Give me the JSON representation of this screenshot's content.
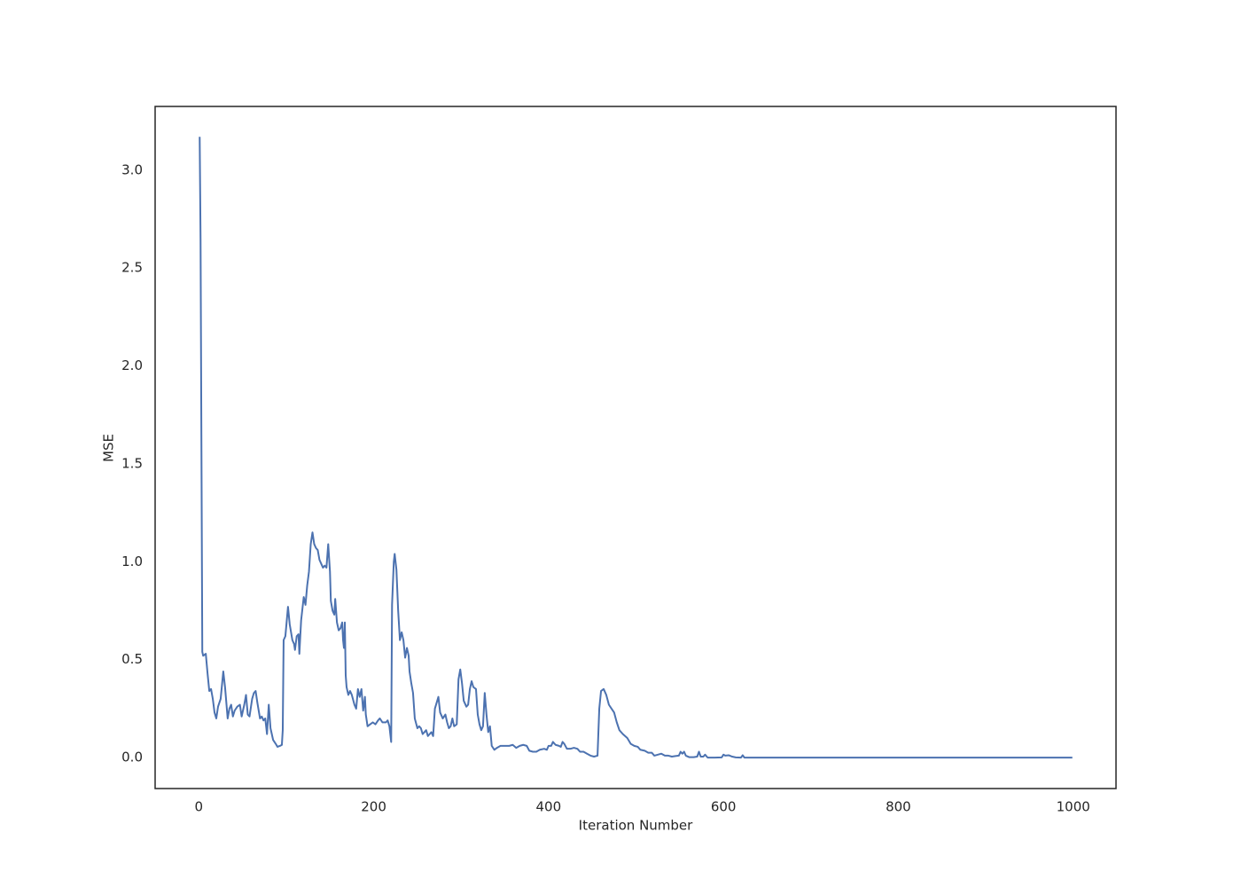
{
  "chart_data": {
    "type": "line",
    "x_label": "Iteration Number",
    "y_label": "MSE",
    "x": [
      1,
      2,
      4,
      5,
      8,
      10,
      12,
      14,
      16,
      18,
      20,
      22,
      25,
      28,
      30,
      33,
      35,
      37,
      39,
      41,
      44,
      47,
      49,
      52,
      54,
      56,
      58,
      61,
      63,
      65,
      67,
      70,
      72,
      74,
      76,
      78,
      80,
      82,
      85,
      88,
      90,
      93,
      95,
      96,
      97,
      99,
      102,
      104,
      107,
      109,
      110,
      112,
      114,
      115,
      117,
      120,
      122,
      124,
      126,
      128,
      130,
      132,
      134,
      136,
      138,
      140,
      142,
      144,
      146,
      148,
      150,
      151,
      153,
      155,
      156,
      158,
      160,
      162,
      164,
      165,
      166,
      167,
      168,
      169,
      171,
      173,
      175,
      178,
      180,
      182,
      184,
      186,
      188,
      190,
      191,
      193,
      196,
      199,
      202,
      205,
      207,
      210,
      214,
      216,
      218,
      219,
      220,
      221,
      223,
      224,
      226,
      228,
      230,
      232,
      234,
      236,
      238,
      240,
      241,
      243,
      245,
      247,
      250,
      252,
      254,
      256,
      258,
      260,
      262,
      264,
      266,
      268,
      270,
      272,
      274,
      276,
      279,
      282,
      284,
      286,
      288,
      290,
      292,
      295,
      297,
      299,
      301,
      303,
      306,
      308,
      310,
      312,
      314,
      317,
      319,
      321,
      323,
      325,
      327,
      329,
      331,
      333,
      335,
      338,
      341,
      345,
      350,
      355,
      359,
      363,
      367,
      371,
      375,
      378,
      382,
      386,
      390,
      395,
      398,
      400,
      403,
      405,
      408,
      412,
      414,
      416,
      418,
      421,
      425,
      429,
      433,
      436,
      440,
      444,
      448,
      452,
      456,
      458,
      460,
      463,
      466,
      469,
      472,
      475,
      478,
      481,
      485,
      490,
      494,
      498,
      502,
      505,
      510,
      514,
      518,
      521,
      525,
      529,
      533,
      537,
      541,
      545,
      549,
      551,
      553,
      555,
      557,
      561,
      566,
      570,
      572,
      574,
      577,
      579,
      582,
      590,
      598,
      600,
      602,
      606,
      610,
      614,
      620,
      622,
      624,
      700,
      800,
      900,
      999
    ],
    "series": [
      {
        "color": "#4c72b0",
        "values": [
          3.17,
          2.65,
          0.54,
          0.52,
          0.53,
          0.43,
          0.34,
          0.35,
          0.3,
          0.23,
          0.2,
          0.26,
          0.3,
          0.44,
          0.36,
          0.2,
          0.25,
          0.27,
          0.21,
          0.24,
          0.26,
          0.27,
          0.21,
          0.27,
          0.32,
          0.22,
          0.21,
          0.3,
          0.33,
          0.34,
          0.28,
          0.2,
          0.21,
          0.19,
          0.2,
          0.12,
          0.27,
          0.15,
          0.09,
          0.07,
          0.055,
          0.06,
          0.065,
          0.14,
          0.6,
          0.62,
          0.77,
          0.68,
          0.6,
          0.58,
          0.55,
          0.62,
          0.63,
          0.53,
          0.7,
          0.82,
          0.78,
          0.88,
          0.95,
          1.09,
          1.15,
          1.09,
          1.07,
          1.06,
          1.01,
          0.99,
          0.97,
          0.98,
          0.97,
          1.09,
          0.95,
          0.8,
          0.75,
          0.73,
          0.81,
          0.69,
          0.65,
          0.66,
          0.69,
          0.6,
          0.56,
          0.69,
          0.42,
          0.36,
          0.32,
          0.34,
          0.32,
          0.27,
          0.25,
          0.35,
          0.31,
          0.35,
          0.24,
          0.31,
          0.22,
          0.16,
          0.17,
          0.18,
          0.17,
          0.19,
          0.2,
          0.18,
          0.18,
          0.19,
          0.16,
          0.12,
          0.08,
          0.78,
          1.0,
          1.04,
          0.96,
          0.75,
          0.6,
          0.64,
          0.6,
          0.51,
          0.56,
          0.52,
          0.44,
          0.38,
          0.33,
          0.2,
          0.15,
          0.16,
          0.15,
          0.12,
          0.13,
          0.14,
          0.11,
          0.12,
          0.13,
          0.11,
          0.25,
          0.28,
          0.31,
          0.23,
          0.2,
          0.22,
          0.18,
          0.15,
          0.16,
          0.2,
          0.16,
          0.17,
          0.4,
          0.45,
          0.38,
          0.29,
          0.26,
          0.27,
          0.35,
          0.39,
          0.36,
          0.35,
          0.22,
          0.17,
          0.14,
          0.16,
          0.33,
          0.22,
          0.13,
          0.16,
          0.06,
          0.04,
          0.05,
          0.06,
          0.06,
          0.06,
          0.065,
          0.05,
          0.06,
          0.065,
          0.06,
          0.035,
          0.03,
          0.03,
          0.04,
          0.045,
          0.04,
          0.06,
          0.06,
          0.08,
          0.065,
          0.06,
          0.055,
          0.08,
          0.07,
          0.045,
          0.045,
          0.05,
          0.045,
          0.03,
          0.03,
          0.02,
          0.01,
          0.005,
          0.01,
          0.25,
          0.34,
          0.35,
          0.32,
          0.27,
          0.25,
          0.23,
          0.18,
          0.14,
          0.12,
          0.1,
          0.07,
          0.06,
          0.055,
          0.04,
          0.035,
          0.025,
          0.025,
          0.01,
          0.015,
          0.02,
          0.01,
          0.01,
          0.005,
          0.008,
          0.01,
          0.03,
          0.02,
          0.03,
          0.01,
          0.002,
          0.002,
          0.005,
          0.03,
          0.005,
          0.005,
          0.015,
          0,
          0,
          0.001,
          0.015,
          0.01,
          0.012,
          0.005,
          0.001,
          0,
          0.012,
          0,
          0,
          0,
          0,
          0
        ]
      }
    ],
    "xlim": [
      -49.95,
      1048.95
    ],
    "xticks": [
      0,
      200,
      400,
      600,
      800,
      1000
    ],
    "ylim": [
      -0.158,
      3.325
    ],
    "yticks": [
      {
        "value": 0,
        "label": "0.0"
      },
      0.5,
      {
        "value": 1,
        "label": "1.0"
      },
      1.5,
      {
        "value": 2,
        "label": "2.0"
      },
      2.5,
      {
        "value": 3,
        "label": "3.0"
      }
    ],
    "grid": false
  }
}
